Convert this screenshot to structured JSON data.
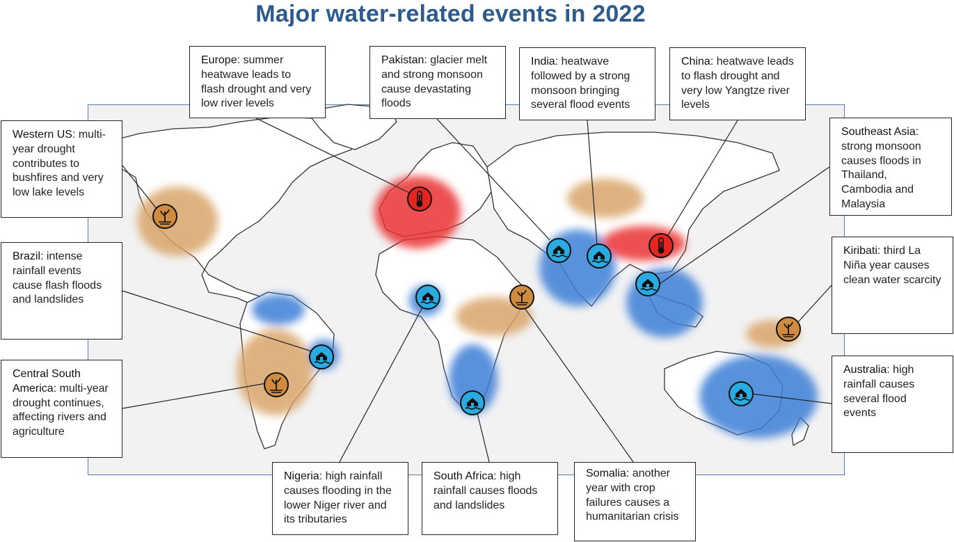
{
  "title": "Major water-related events in 2022",
  "colors": {
    "title": "#2e5b8e",
    "flood": "#3d7fd6",
    "drought": "#d9a56a",
    "heat": "#ea3333"
  },
  "legend_icons": {
    "flood": "house-flood-icon",
    "drought": "dry-plant-icon",
    "heat": "thermometer-icon"
  },
  "callouts": {
    "western_us": {
      "region": "Western US",
      "text": ": multi-year drought contributes to bushfires and very low lake levels",
      "event": "drought"
    },
    "europe": {
      "region": "Europe",
      "text": ": summer heatwave leads to flash drought and very low river levels",
      "event": "heat"
    },
    "pakistan": {
      "region": "Pakistan",
      "text": ": glacier melt and strong monsoon cause devastating floods",
      "event": "flood"
    },
    "india": {
      "region": "India",
      "text": ": heatwave followed by a strong monsoon bringing several flood events",
      "event": "flood"
    },
    "china": {
      "region": "China",
      "text": ": heatwave leads to flash drought and very low Yangtze river levels",
      "event": "heat"
    },
    "southeast_asia": {
      "region": "Southeast Asia",
      "text": ": strong monsoon causes floods in Thailand, Cambodia and Malaysia",
      "event": "flood"
    },
    "brazil": {
      "region": "Brazil",
      "text": ": intense rainfall events cause flash floods and landslides",
      "event": "flood"
    },
    "kiribati": {
      "region": "Kiribati",
      "text": ": third La Niña year causes clean water scarcity",
      "event": "drought"
    },
    "central_south_america": {
      "region": "Central South America",
      "text": ": multi-year drought continues, affecting rivers and agriculture",
      "event": "drought"
    },
    "australia": {
      "region": "Australia",
      "text": ": high rainfall causes several flood events",
      "event": "flood"
    },
    "nigeria": {
      "region": "Nigeria",
      "text": ": high rainfall causes flooding in the lower Niger river and its tributaries",
      "event": "flood"
    },
    "south_africa": {
      "region": "South Africa",
      "text": ": high rainfall causes floods and landslides",
      "event": "flood"
    },
    "somalia": {
      "region": "Somalia",
      "text": ": another year with crop failures causes a humanitarian crisis",
      "event": "drought"
    }
  }
}
